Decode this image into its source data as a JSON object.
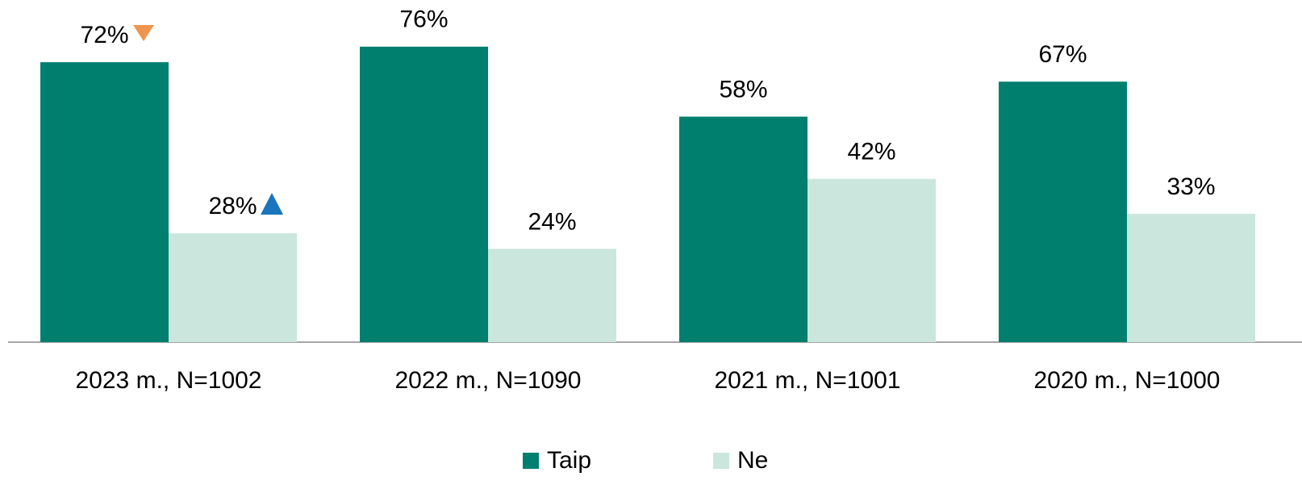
{
  "chart_data": {
    "type": "bar",
    "categories": [
      "2023 m., N=1002",
      "2022 m., N=1090",
      "2021 m., N=1001",
      "2020 m., N=1000"
    ],
    "series": [
      {
        "name": "Taip",
        "color": "#007f6f",
        "values": [
          72,
          76,
          58,
          67
        ],
        "value_labels": [
          "72%",
          "76%",
          "58%",
          "67%"
        ]
      },
      {
        "name": "Ne",
        "color": "#cbe6dc",
        "values": [
          28,
          24,
          42,
          33
        ],
        "value_labels": [
          "28%",
          "24%",
          "42%",
          "33%"
        ]
      }
    ],
    "ylim": [
      0,
      88
    ],
    "grid": false,
    "legend": "bottom"
  }
}
